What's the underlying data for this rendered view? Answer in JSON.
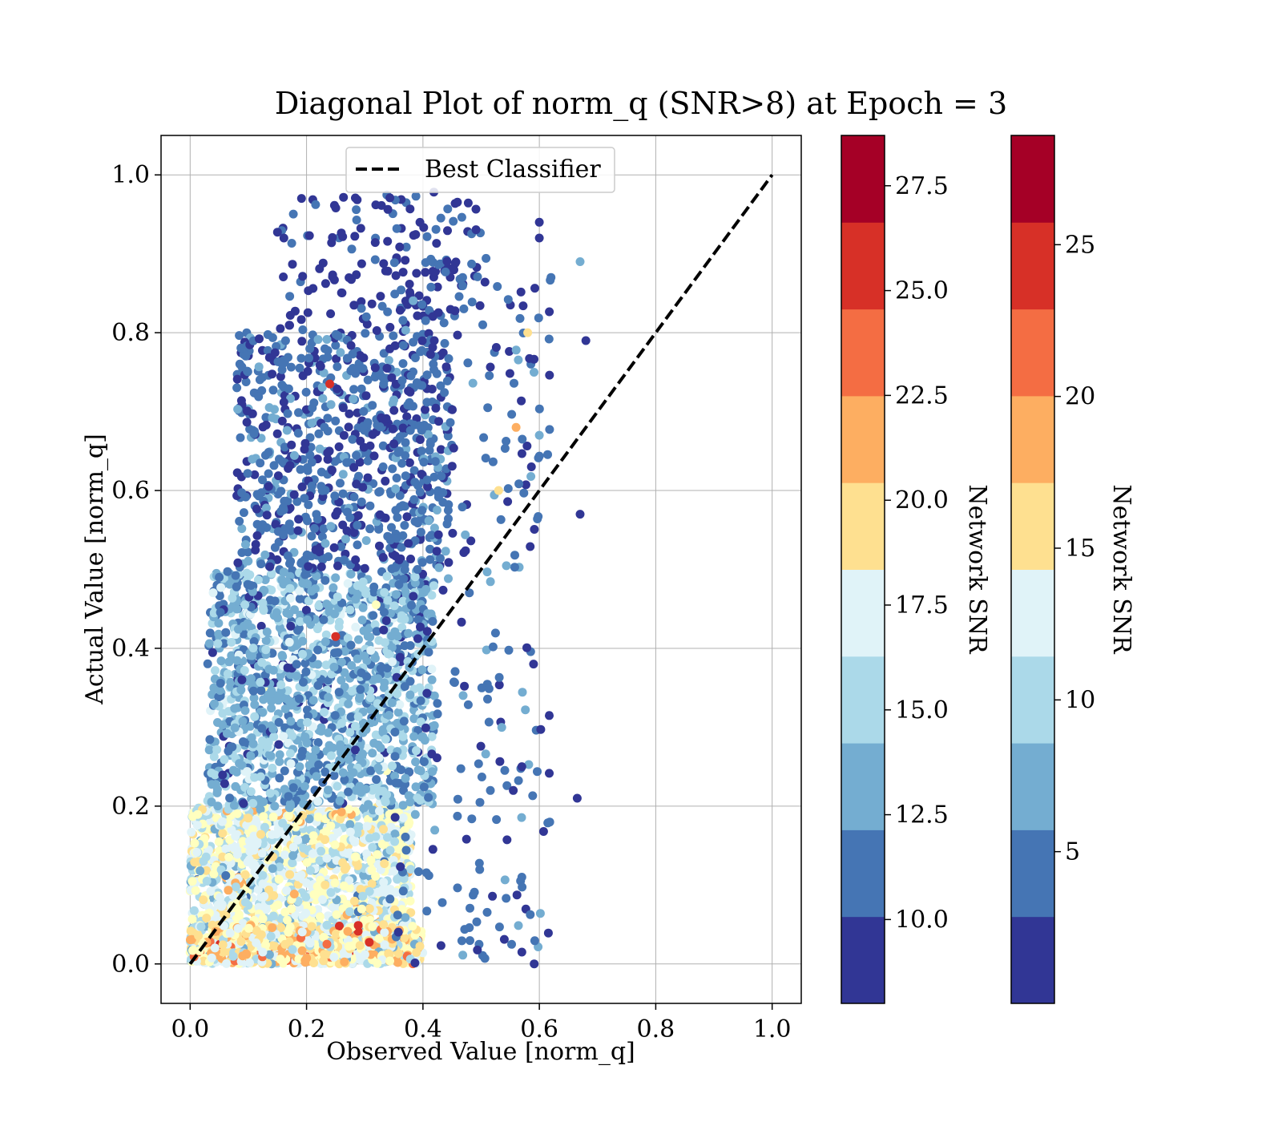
{
  "chart_data": {
    "type": "scatter",
    "title": "Diagonal Plot of norm_q (SNR>8) at Epoch = 3",
    "xlabel": "Observed Value [norm_q]",
    "ylabel": "Actual Value [norm_q]",
    "xlim": [
      -0.05,
      1.05
    ],
    "ylim": [
      -0.05,
      1.05
    ],
    "xticks": [
      "0.0",
      "0.2",
      "0.4",
      "0.6",
      "0.8",
      "1.0"
    ],
    "yticks": [
      "0.0",
      "0.2",
      "0.4",
      "0.6",
      "0.8",
      "1.0"
    ],
    "grid": true,
    "legend": {
      "placement": "upper center",
      "entries": [
        {
          "label": "Best Classifier",
          "style": "dashed",
          "color": "#000000"
        }
      ]
    },
    "reference_line": {
      "name": "Best Classifier",
      "x": [
        0,
        1
      ],
      "y": [
        0,
        1
      ]
    },
    "color_levels": [
      "#313695",
      "#4575b4",
      "#74add1",
      "#abd9e9",
      "#e0f3f8",
      "#ffffbf",
      "#fee090",
      "#fdae61",
      "#f46d43",
      "#d73027",
      "#a50026"
    ],
    "colorbars": [
      {
        "label": "Network SNR",
        "range": [
          8.0,
          28.7
        ],
        "ticks": [
          "10.0",
          "12.5",
          "15.0",
          "17.5",
          "20.0",
          "22.5",
          "25.0",
          "27.5"
        ],
        "tick_values": [
          10.0,
          12.5,
          15.0,
          17.5,
          20.0,
          22.5,
          25.0,
          27.5
        ],
        "n_bands": 10
      },
      {
        "label": "Network SNR",
        "range": [
          0,
          28.6
        ],
        "ticks": [
          "5",
          "10",
          "15",
          "20",
          "25"
        ],
        "tick_values": [
          5,
          10,
          15,
          20,
          25
        ],
        "n_bands": 10
      }
    ],
    "series": [
      {
        "name": "",
        "snr_range": [
          8,
          29
        ],
        "clusters": [
          {
            "x_min": 0.0,
            "x_max": 0.38,
            "y_min": 0.0,
            "y_max": 0.2,
            "count": 1700,
            "snr_mean": 17,
            "snr_spread": 4
          },
          {
            "x_min": 0.0,
            "x_max": 0.4,
            "y_min": 0.0,
            "y_max": 0.05,
            "count": 500,
            "snr_mean": 19,
            "snr_spread": 5
          },
          {
            "x_min": 0.03,
            "x_max": 0.42,
            "y_min": 0.2,
            "y_max": 0.5,
            "count": 1400,
            "snr_mean": 13,
            "snr_spread": 3
          },
          {
            "x_min": 0.08,
            "x_max": 0.45,
            "y_min": 0.5,
            "y_max": 0.8,
            "count": 750,
            "snr_mean": 10.5,
            "snr_spread": 2
          },
          {
            "x_min": 0.15,
            "x_max": 0.5,
            "y_min": 0.8,
            "y_max": 0.98,
            "count": 160,
            "snr_mean": 9.5,
            "snr_spread": 1.5
          },
          {
            "x_min": 0.35,
            "x_max": 0.62,
            "y_min": 0.0,
            "y_max": 0.9,
            "count": 260,
            "snr_mean": 10.5,
            "snr_spread": 2
          }
        ],
        "points": [
          {
            "x": 0.67,
            "y": 0.89,
            "snr": 12
          },
          {
            "x": 0.68,
            "y": 0.79,
            "snr": 9
          },
          {
            "x": 0.67,
            "y": 0.57,
            "snr": 9
          },
          {
            "x": 0.665,
            "y": 0.21,
            "snr": 9
          },
          {
            "x": 0.6,
            "y": 0.94,
            "snr": 9
          },
          {
            "x": 0.6,
            "y": 0.92,
            "snr": 9
          },
          {
            "x": 0.62,
            "y": 0.87,
            "snr": 11
          },
          {
            "x": 0.58,
            "y": 0.8,
            "snr": 20
          },
          {
            "x": 0.6,
            "y": 0.67,
            "snr": 13
          },
          {
            "x": 0.56,
            "y": 0.68,
            "snr": 22
          },
          {
            "x": 0.53,
            "y": 0.6,
            "snr": 21
          },
          {
            "x": 0.59,
            "y": 0.38,
            "snr": 9
          },
          {
            "x": 0.57,
            "y": 0.25,
            "snr": 9
          },
          {
            "x": 0.57,
            "y": 0.11,
            "snr": 11
          },
          {
            "x": 0.57,
            "y": 0.015,
            "snr": 9
          },
          {
            "x": 0.24,
            "y": 0.735,
            "snr": 26
          },
          {
            "x": 0.25,
            "y": 0.415,
            "snr": 27
          }
        ]
      }
    ]
  }
}
